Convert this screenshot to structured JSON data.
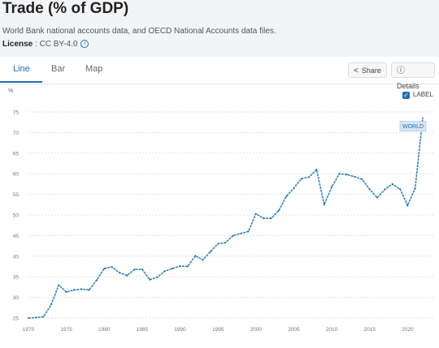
{
  "header": {
    "title": "Trade (% of GDP)",
    "source": "World Bank national accounts data, and OECD National Accounts data files.",
    "license_label": "License",
    "license_value": " : CC BY-4.0"
  },
  "tabs": [
    {
      "label": "Line",
      "active": true
    },
    {
      "label": "Bar",
      "active": false
    },
    {
      "label": "Map",
      "active": false
    }
  ],
  "buttons": {
    "share": "Share",
    "details": "Details"
  },
  "toggle": {
    "label": "LABEL",
    "checked": true
  },
  "colors": {
    "accent": "#1f6fb5",
    "series": "#2b86c5"
  },
  "chart_data": {
    "type": "line",
    "unit_label": "%",
    "ylim": [
      25,
      75
    ],
    "yticks": [
      25,
      30,
      35,
      40,
      45,
      50,
      55,
      60,
      65,
      70,
      75
    ],
    "xlim": [
      1970,
      2022
    ],
    "xticks": [
      1970,
      1975,
      1980,
      1985,
      1990,
      1995,
      2000,
      2005,
      2010,
      2015,
      2020
    ],
    "grid": true,
    "series": [
      {
        "name": "WORLD",
        "x": [
          1970,
          1971,
          1972,
          1973,
          1974,
          1975,
          1976,
          1977,
          1978,
          1979,
          1980,
          1981,
          1982,
          1983,
          1984,
          1985,
          1986,
          1987,
          1988,
          1989,
          1990,
          1991,
          1992,
          1993,
          1994,
          1995,
          1996,
          1997,
          1998,
          1999,
          2000,
          2001,
          2002,
          2003,
          2004,
          2005,
          2006,
          2007,
          2008,
          2009,
          2010,
          2011,
          2012,
          2013,
          2014,
          2015,
          2016,
          2017,
          2018,
          2019,
          2020,
          2021,
          2022
        ],
        "y": [
          25.0,
          25.1,
          25.3,
          28.3,
          33.0,
          31.3,
          31.8,
          32.0,
          31.8,
          34.2,
          37.0,
          37.4,
          36.0,
          35.3,
          36.8,
          36.8,
          34.3,
          34.9,
          36.4,
          37.0,
          37.6,
          37.5,
          40.1,
          39.1,
          41.1,
          43.0,
          43.3,
          45.0,
          45.5,
          46.0,
          50.3,
          49.2,
          49.2,
          51.0,
          54.5,
          56.5,
          58.8,
          59.2,
          61.0,
          52.5,
          56.8,
          60.0,
          59.8,
          59.3,
          58.7,
          56.2,
          54.2,
          56.2,
          57.5,
          56.3,
          52.3,
          56.5,
          73.5
        ]
      }
    ]
  }
}
